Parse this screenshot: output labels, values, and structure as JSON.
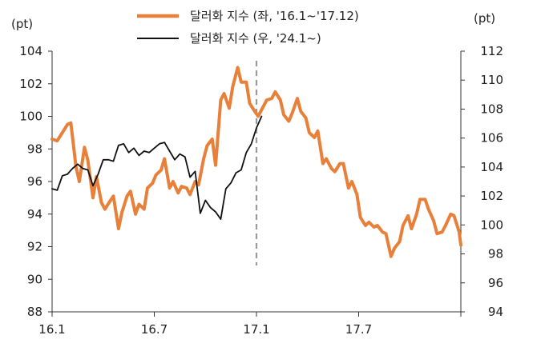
{
  "chart_data": {
    "type": "line",
    "title": "",
    "left_unit": "(pt)",
    "right_unit": "(pt)",
    "x_axis": {
      "ticks": [
        "16.1",
        "16.7",
        "17.1",
        "17.7"
      ],
      "range_months": [
        0,
        24
      ]
    },
    "y_left": {
      "lim": [
        88,
        104
      ],
      "ticks": [
        "88",
        "90",
        "92",
        "94",
        "96",
        "98",
        "100",
        "102",
        "104"
      ]
    },
    "y_right": {
      "lim": [
        94,
        112
      ],
      "ticks": [
        "94",
        "96",
        "98",
        "100",
        "102",
        "104",
        "106",
        "108",
        "110",
        "112"
      ]
    },
    "legend": {
      "placement": "top-center"
    },
    "annotation": {
      "type": "vertical-dashed-line",
      "x": 12,
      "color": "#999999"
    },
    "series": [
      {
        "name": "달러화 지수 (좌, '16.1~'17.12)",
        "axis": "left",
        "color": "#E8803A",
        "x": [
          0,
          0.3,
          0.6,
          0.9,
          1.1,
          1.4,
          1.6,
          1.9,
          2.1,
          2.4,
          2.6,
          2.9,
          3.1,
          3.4,
          3.6,
          3.9,
          4.1,
          4.4,
          4.6,
          4.9,
          5.1,
          5.4,
          5.6,
          5.9,
          6.1,
          6.4,
          6.6,
          6.9,
          7.1,
          7.4,
          7.6,
          7.9,
          8.1,
          8.4,
          8.6,
          8.9,
          9.1,
          9.4,
          9.6,
          9.9,
          10.1,
          10.4,
          10.6,
          10.9,
          11.1,
          11.4,
          11.6,
          11.9,
          12.1,
          12.4,
          12.6,
          12.9,
          13.1,
          13.4,
          13.6,
          13.9,
          14.1,
          14.4,
          14.6,
          14.9,
          15.1,
          15.4,
          15.6,
          15.9,
          16.1,
          16.4,
          16.6,
          16.9,
          17.1,
          17.4,
          17.6,
          17.9,
          18.1,
          18.4,
          18.6,
          18.9,
          19.1,
          19.4,
          19.6,
          19.9,
          20.1,
          20.4,
          20.6,
          20.9,
          21.1,
          21.4,
          21.6,
          21.9,
          22.1,
          22.4,
          22.6,
          22.9,
          23.1,
          23.4,
          23.6,
          23.9,
          24
        ],
        "values": [
          98.6,
          98.5,
          99.0,
          99.5,
          99.6,
          96.9,
          96.0,
          98.1,
          97.3,
          95.0,
          96.3,
          94.7,
          94.3,
          94.8,
          95.1,
          93.1,
          94.1,
          95.1,
          95.4,
          94.0,
          94.6,
          94.3,
          95.6,
          95.9,
          96.4,
          96.7,
          97.4,
          95.6,
          96.0,
          95.3,
          95.7,
          95.6,
          95.2,
          96.0,
          95.8,
          97.4,
          98.2,
          98.6,
          97.0,
          101.0,
          101.4,
          100.5,
          101.8,
          103.0,
          102.1,
          102.1,
          100.8,
          100.3,
          100.0,
          100.6,
          101.0,
          101.1,
          101.5,
          101.0,
          100.1,
          99.7,
          100.2,
          101.1,
          100.3,
          99.9,
          99.0,
          98.7,
          99.1,
          97.1,
          97.4,
          96.8,
          96.6,
          97.1,
          97.1,
          95.6,
          96.0,
          95.2,
          93.8,
          93.3,
          93.5,
          93.2,
          93.3,
          92.9,
          92.8,
          91.4,
          91.9,
          92.3,
          93.3,
          93.9,
          93.1,
          94.0,
          94.9,
          94.9,
          94.3,
          93.6,
          92.8,
          92.9,
          93.3,
          94.0,
          93.9,
          92.9,
          92.1
        ]
      },
      {
        "name": "달러화 지수 (우, '24.1~)",
        "axis": "right",
        "color": "#111111",
        "x": [
          0,
          0.3,
          0.6,
          0.9,
          1.2,
          1.5,
          1.8,
          2.1,
          2.4,
          2.7,
          3.0,
          3.3,
          3.6,
          3.9,
          4.2,
          4.5,
          4.8,
          5.1,
          5.4,
          5.7,
          6.0,
          6.3,
          6.6,
          6.9,
          7.2,
          7.5,
          7.8,
          8.1,
          8.4,
          8.7,
          9.0,
          9.3,
          9.6,
          9.9,
          10.2,
          10.5,
          10.8,
          11.1,
          11.4,
          11.7,
          12.0,
          12.3
        ],
        "values": [
          102.5,
          102.4,
          103.4,
          103.5,
          103.9,
          104.2,
          103.9,
          103.8,
          102.7,
          103.5,
          104.5,
          104.5,
          104.4,
          105.5,
          105.6,
          105.0,
          105.3,
          104.8,
          105.1,
          105.0,
          105.3,
          105.6,
          105.7,
          105.1,
          104.5,
          104.9,
          104.7,
          103.3,
          103.7,
          100.8,
          101.7,
          101.2,
          100.9,
          100.4,
          102.5,
          102.9,
          103.6,
          103.8,
          105.0,
          105.6,
          106.7,
          107.5
        ]
      }
    ]
  }
}
